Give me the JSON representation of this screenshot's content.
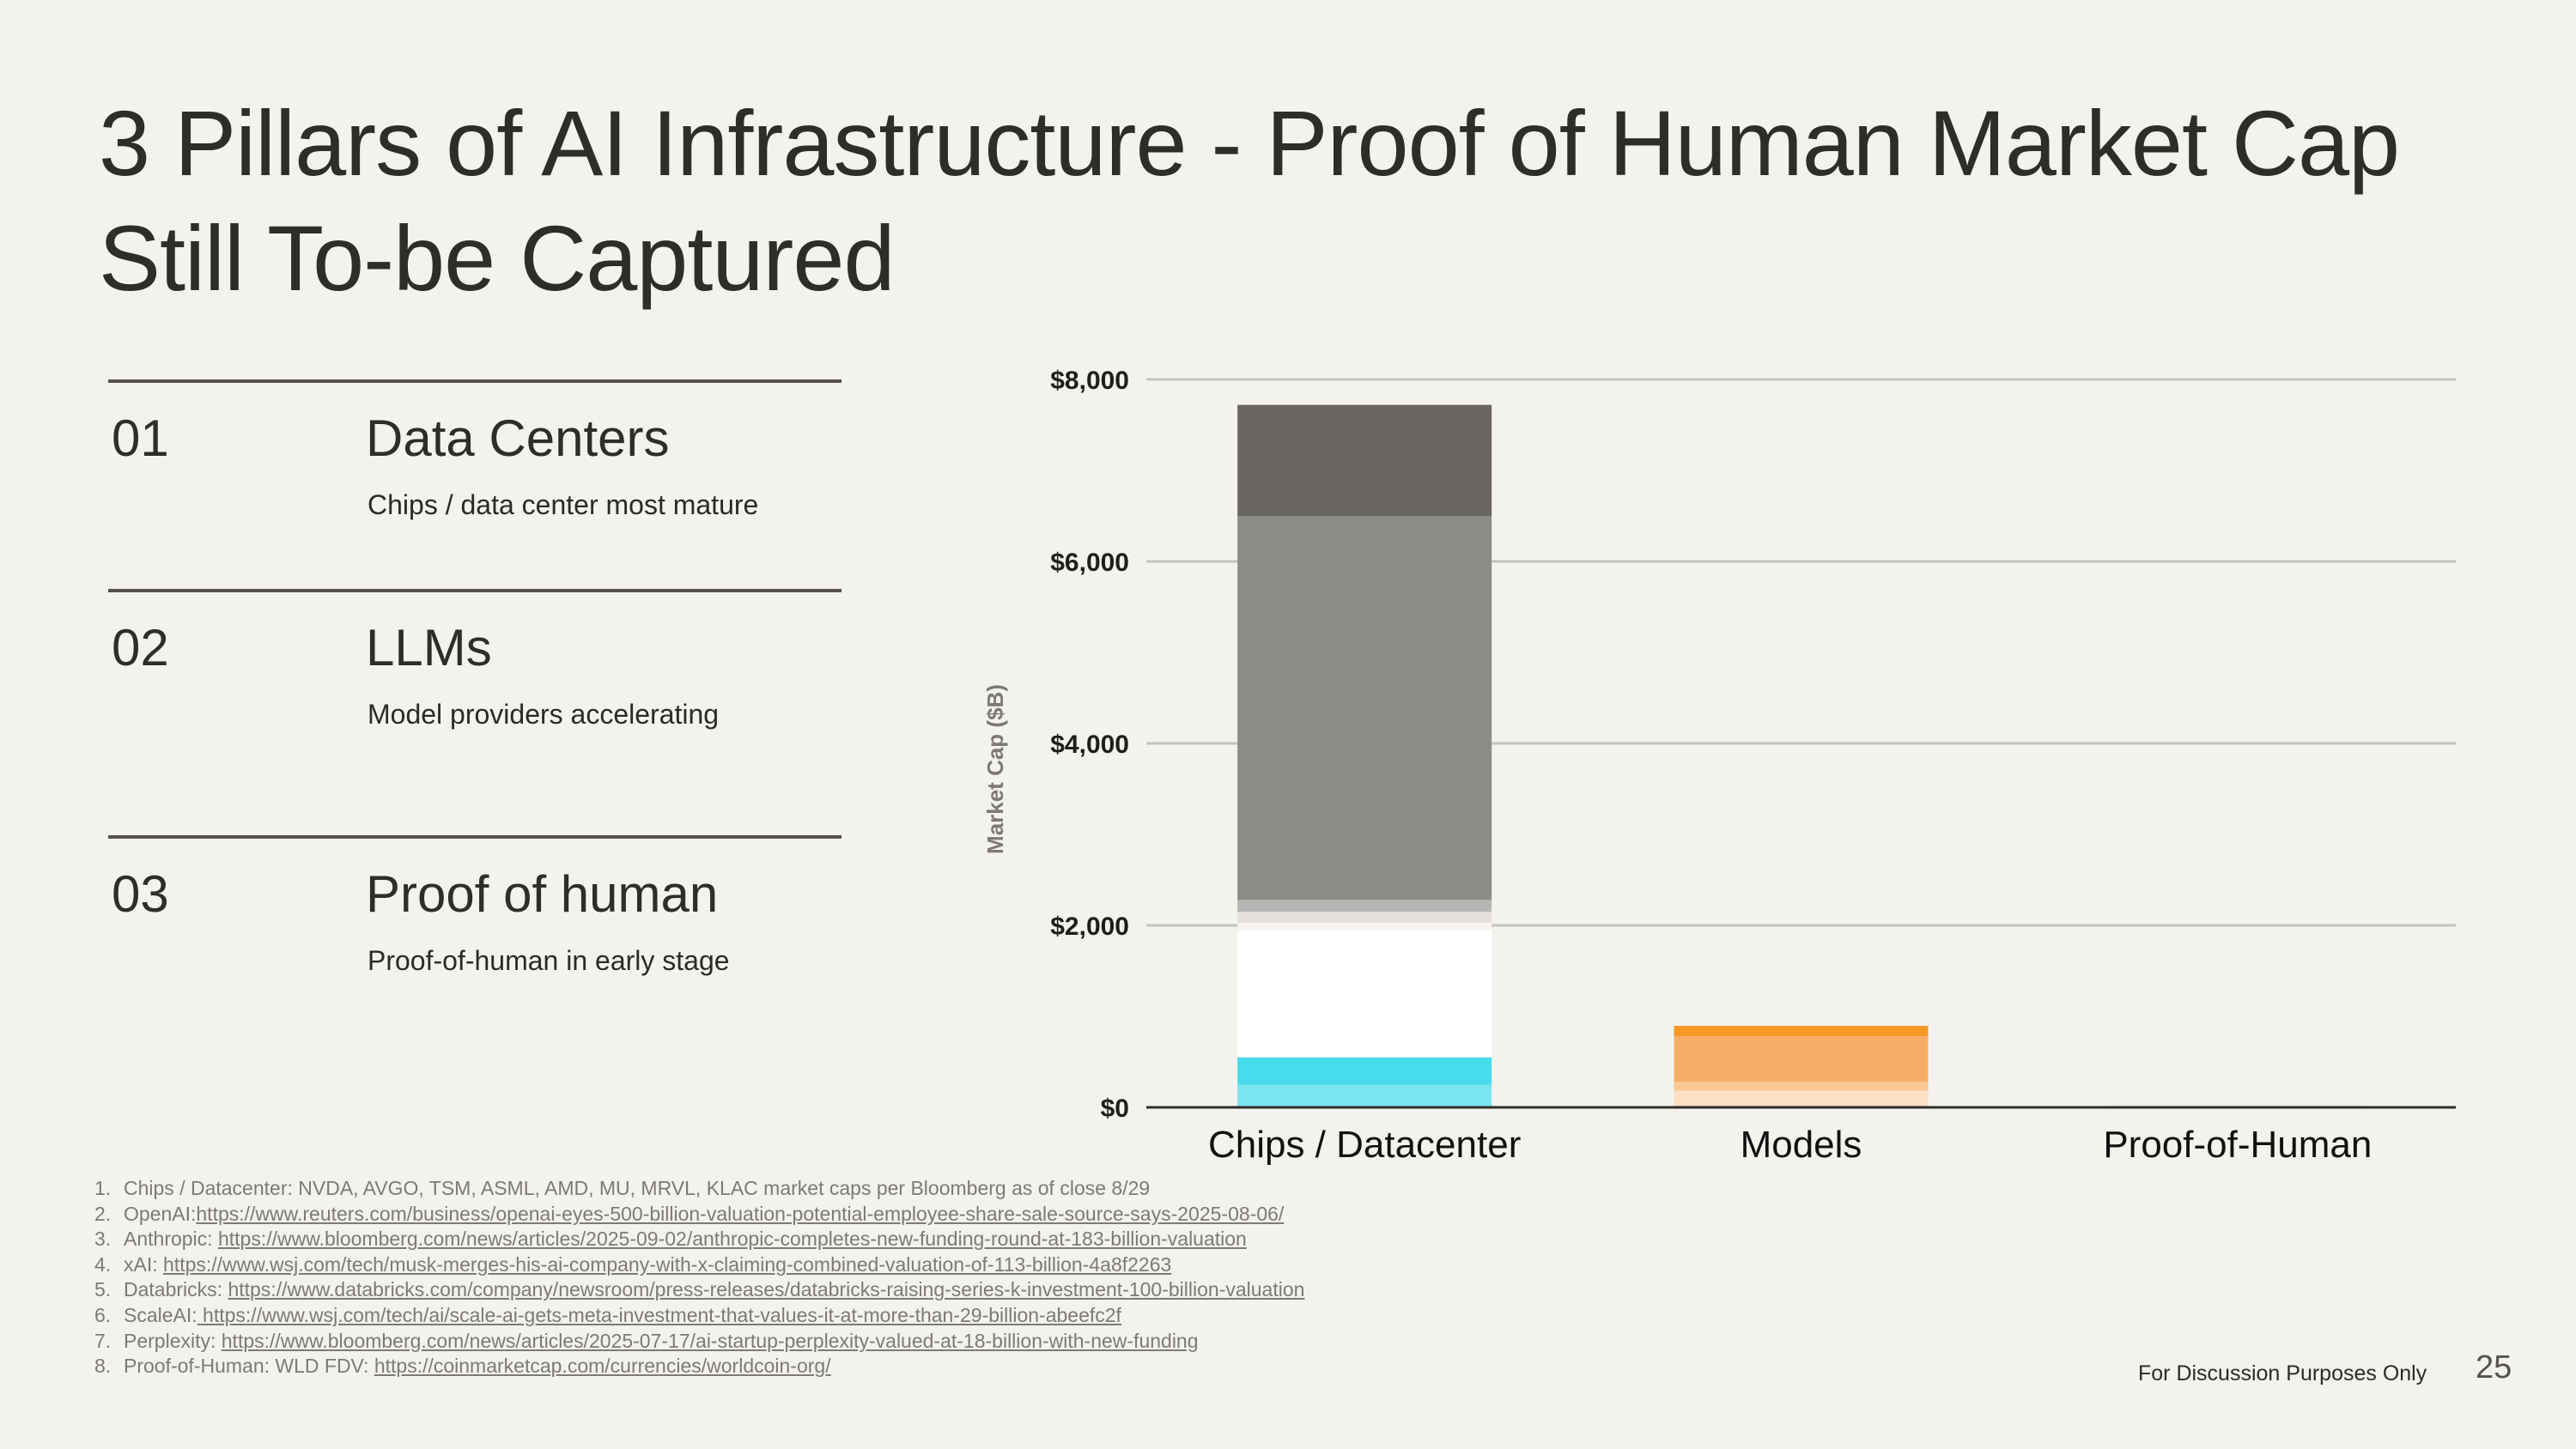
{
  "slide": {
    "title": "3 Pillars of AI Infrastructure - Proof of Human Market Cap Still To-be Captured",
    "disclaimer": "For Discussion Purposes Only",
    "page_number": "25"
  },
  "pillars": [
    {
      "num": "01",
      "name": "Data Centers",
      "desc": "Chips / data center most mature"
    },
    {
      "num": "02",
      "name": "LLMs",
      "desc": "Model providers accelerating"
    },
    {
      "num": "03",
      "name": "Proof of human",
      "desc": "Proof-of-human in early stage"
    }
  ],
  "chart_data": {
    "type": "bar",
    "stacked": true,
    "categories": [
      "Chips / Datacenter",
      "Models",
      "Proof-of-Human"
    ],
    "ylabel": "Market Cap ($B)",
    "ylim": [
      0,
      8000
    ],
    "yticks": [
      "$0",
      "$2,000",
      "$4,000",
      "$6,000",
      "$8,000"
    ],
    "ytick_values": [
      0,
      2000,
      4000,
      6000,
      8000
    ],
    "grid": true,
    "stacks": [
      {
        "category": "Chips / Datacenter",
        "segments": [
          {
            "value": 250,
            "color": "#7ae4ef"
          },
          {
            "value": 300,
            "color": "#47dcec"
          },
          {
            "value": 1400,
            "color": "#ffffff"
          },
          {
            "value": 80,
            "color": "#f7f3f0"
          },
          {
            "value": 120,
            "color": "#e3e0dd"
          },
          {
            "value": 130,
            "color": "#b7b5b3"
          },
          {
            "value": 4220,
            "color": "#8c8c87"
          },
          {
            "value": 1220,
            "color": "#6a6663"
          }
        ]
      },
      {
        "category": "Models",
        "segments": [
          {
            "value": 183,
            "color": "#fbe0c4"
          },
          {
            "value": 100,
            "color": "#f9c894"
          },
          {
            "value": 500,
            "color": "#f7ad68"
          },
          {
            "value": 113,
            "color": "#f59824"
          }
        ]
      },
      {
        "category": "Proof-of-Human",
        "segments": [
          {
            "value": 15,
            "color": "#f4c6c3"
          }
        ]
      }
    ]
  },
  "footnotes": [
    {
      "num": "1.",
      "text": "Chips / Datacenter: NVDA, AVGO, TSM, ASML, AMD, MU, MRVL, KLAC market caps per Bloomberg as of close 8/29",
      "link": ""
    },
    {
      "num": "2.",
      "text": "OpenAI:",
      "link": "https://www.reuters.com/business/openai-eyes-500-billion-valuation-potential-employee-share-sale-source-says-2025-08-06/"
    },
    {
      "num": "3.",
      "text": "Anthropic: ",
      "link": "https://www.bloomberg.com/news/articles/2025-09-02/anthropic-completes-new-funding-round-at-183-billion-valuation"
    },
    {
      "num": "4.",
      "text": "xAI: ",
      "link": "https://www.wsj.com/tech/musk-merges-his-ai-company-with-x-claiming-combined-valuation-of-113-billion-4a8f2263"
    },
    {
      "num": "5.",
      "text": "Databricks: ",
      "link": "https://www.databricks.com/company/newsroom/press-releases/databricks-raising-series-k-investment-100-billion-valuation"
    },
    {
      "num": "6.",
      "text": "ScaleAI:",
      "link": " https://www.wsj.com/tech/ai/scale-ai-gets-meta-investment-that-values-it-at-more-than-29-billion-abeefc2f"
    },
    {
      "num": "7.",
      "text": "Perplexity: ",
      "link": "https://www.bloomberg.com/news/articles/2025-07-17/ai-startup-perplexity-valued-at-18-billion-with-new-funding"
    },
    {
      "num": "8.",
      "text": "Proof-of-Human: WLD FDV: ",
      "link": "https://coinmarketcap.com/currencies/worldcoin-org/"
    }
  ]
}
